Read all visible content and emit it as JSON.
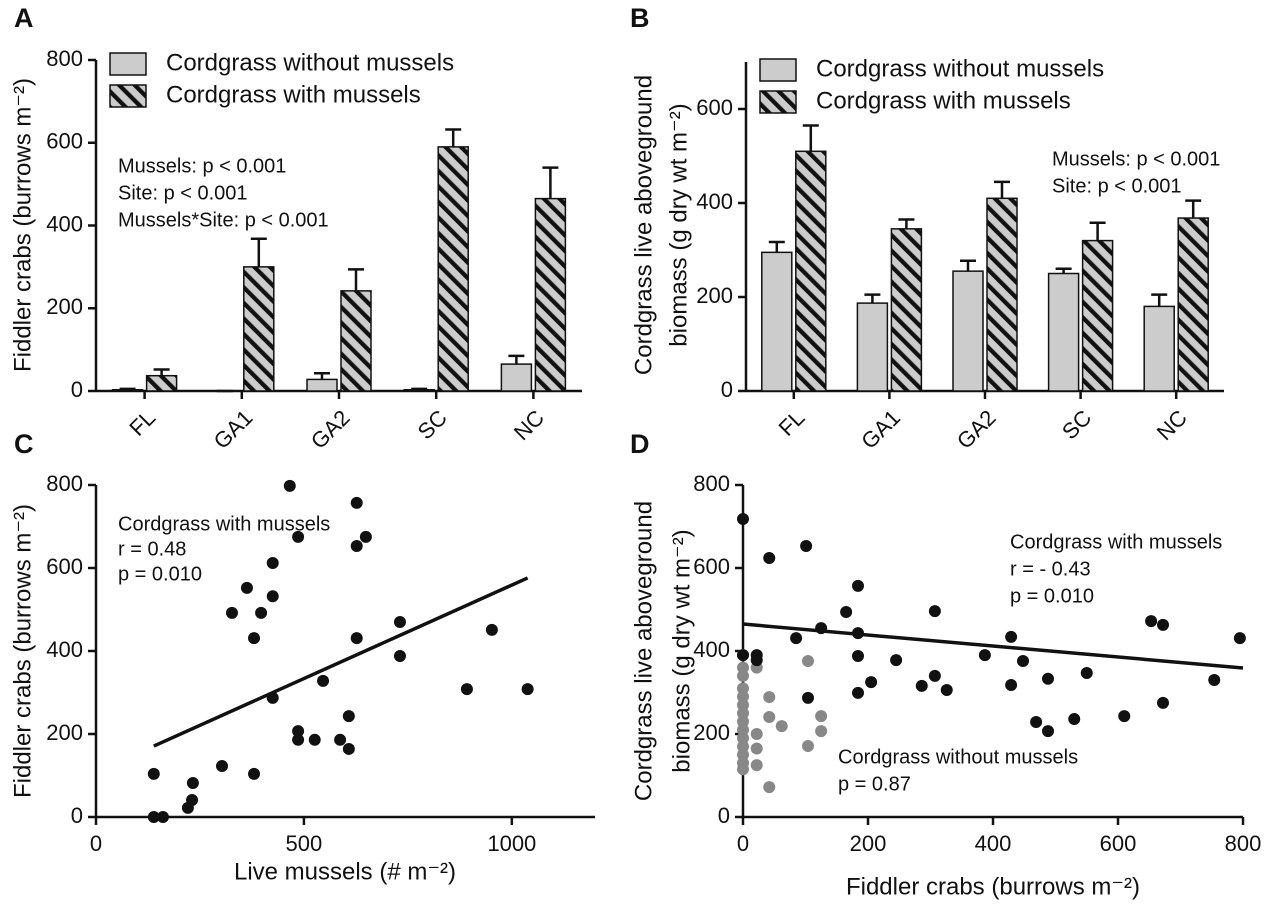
{
  "chart_data": [
    {
      "type": "bar",
      "panel": "A",
      "ylabel": [
        "Fiddler crabs (burrows m⁻²)"
      ],
      "categories": [
        "FL",
        "GA1",
        "GA2",
        "SC",
        "NC"
      ],
      "series": [
        {
          "name": "Cordgrass without mussels",
          "color": "#cccccc",
          "pattern": "solid",
          "values": [
            3,
            0,
            28,
            3,
            65
          ],
          "errors": [
            2,
            0,
            15,
            2,
            20
          ]
        },
        {
          "name": "Cordgrass with mussels",
          "color": "#cccccc",
          "pattern": "hatch",
          "values": [
            37,
            300,
            242,
            590,
            465
          ],
          "errors": [
            15,
            68,
            52,
            42,
            75
          ]
        }
      ],
      "ylim": [
        0,
        800
      ],
      "yticks": [
        0,
        200,
        400,
        600,
        800
      ],
      "annotations": [
        [
          "Mussels: p < 0.001",
          "Site: p < 0.001",
          "Mussels*Site: p < 0.001"
        ]
      ]
    },
    {
      "type": "bar",
      "panel": "B",
      "ylabel": [
        "Cordgrass live aboveground",
        "biomass (g dry wt m⁻²)"
      ],
      "categories": [
        "FL",
        "GA1",
        "GA2",
        "SC",
        "NC"
      ],
      "series": [
        {
          "name": "Cordgrass without mussels",
          "color": "#cccccc",
          "pattern": "solid",
          "values": [
            295,
            187,
            255,
            250,
            180
          ],
          "errors": [
            22,
            18,
            22,
            10,
            25
          ]
        },
        {
          "name": "Cordgrass with mussels",
          "color": "#cccccc",
          "pattern": "hatch",
          "values": [
            510,
            345,
            410,
            320,
            368
          ],
          "errors": [
            55,
            20,
            35,
            38,
            37
          ]
        }
      ],
      "ylim": [
        0,
        700
      ],
      "yticks": [
        0,
        200,
        400,
        600
      ],
      "annotations": [
        [
          "Mussels: p < 0.001",
          "Site: p < 0.001"
        ]
      ]
    },
    {
      "type": "scatter",
      "panel": "C",
      "xlabel": "Live mussels  (# m⁻²)",
      "ylabel": [
        "Fiddler crabs (burrows m⁻²)"
      ],
      "series": [
        {
          "color": "#111111",
          "x": [
            139,
            139,
            161,
            221,
            231,
            233,
            303,
            327,
            363,
            380,
            380,
            397,
            425,
            425,
            425,
            466,
            486,
            486,
            486,
            526,
            546,
            587,
            608,
            608,
            627,
            627,
            627,
            649,
            731,
            731,
            892,
            952,
            1038
          ],
          "values": [
            104,
            0,
            0,
            22,
            41,
            82,
            123,
            492,
            552,
            431,
            104,
            492,
            287,
            612,
            532,
            798,
            675,
            207,
            186,
            186,
            328,
            186,
            243,
            164,
            757,
            653,
            431,
            675,
            470,
            388,
            308,
            451,
            308
          ]
        }
      ],
      "fit": {
        "x": [
          139,
          1038
        ],
        "y": [
          171,
          576
        ]
      },
      "xlim": [
        0,
        1200
      ],
      "xticks": [
        0,
        500,
        1000
      ],
      "ylim": [
        0,
        800
      ],
      "yticks": [
        0,
        200,
        400,
        600,
        800
      ],
      "annotations": [
        [
          "Cordgrass with mussels",
          "r = 0.48",
          "p = 0.010"
        ]
      ]
    },
    {
      "type": "scatter",
      "panel": "D",
      "xlabel": "Fiddler crabs (burrows m⁻²)",
      "ylabel": [
        "Cordgrass live aboveground",
        "biomass (g dry wt m⁻²)"
      ],
      "series": [
        {
          "color": "#888888",
          "x": [
            0,
            0,
            0,
            0,
            0,
            0,
            0,
            0,
            0,
            0,
            0,
            0,
            0,
            0,
            22,
            22,
            22,
            22,
            42,
            42,
            42,
            62,
            104,
            104,
            125,
            125
          ],
          "values": [
            390,
            360,
            340,
            310,
            290,
            270,
            250,
            230,
            210,
            190,
            170,
            150,
            130,
            115,
            360,
            200,
            165,
            125,
            289,
            241,
            72,
            219,
            376,
            171,
            243,
            207
          ]
        },
        {
          "color": "#111111",
          "x": [
            0,
            0,
            22,
            22,
            42,
            101,
            85,
            125,
            104,
            165,
            184,
            184,
            184,
            184,
            205,
            245,
            286,
            307,
            307,
            326,
            387,
            429,
            429,
            448,
            469,
            488,
            488,
            530,
            550,
            610,
            653,
            672,
            672,
            754,
            795
          ],
          "values": [
            718,
            390,
            390,
            378,
            624,
            653,
            431,
            455,
            287,
            494,
            557,
            443,
            388,
            299,
            325,
            378,
            316,
            496,
            340,
            306,
            390,
            434,
            318,
            376,
            229,
            333,
            207,
            236,
            347,
            243,
            472,
            463,
            275,
            330,
            431
          ]
        }
      ],
      "fit": {
        "x": [
          0,
          800
        ],
        "y": [
          465,
          359
        ]
      },
      "xlim": [
        0,
        800
      ],
      "xticks": [
        0,
        200,
        400,
        600,
        800
      ],
      "ylim": [
        0,
        800
      ],
      "yticks": [
        0,
        200,
        400,
        600,
        800
      ],
      "annotations": [
        [
          "Cordgrass with mussels",
          "r =  - 0.43",
          "p = 0.010"
        ],
        [
          "Cordgrass without mussels",
          "p = 0.87"
        ]
      ]
    }
  ]
}
